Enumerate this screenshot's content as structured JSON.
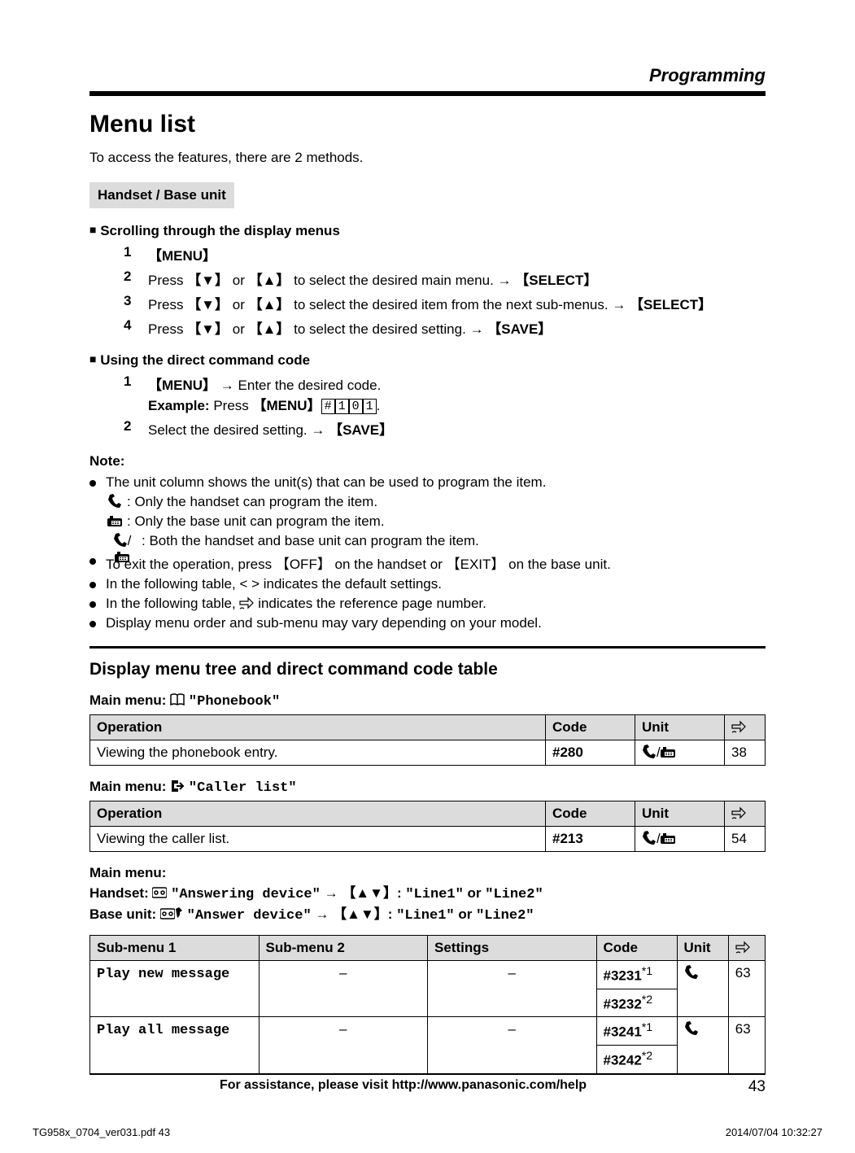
{
  "header": {
    "section": "Programming"
  },
  "title": "Menu list",
  "intro": "To access the features, there are 2 methods.",
  "shadeBox": "Handset / Base unit",
  "scrollHead": "Scrolling through the display menus",
  "scrollSteps": [
    {
      "n": "1",
      "html": "【MENU】"
    },
    {
      "n": "2",
      "html": "Press 【▼】 or 【▲】 to select the desired main menu. <span class='arrow'>→</span> 【SELECT】"
    },
    {
      "n": "3",
      "html": "Press 【▼】 or 【▲】 to select the desired item from the next sub-menus. <span class='arrow'>→</span> 【SELECT】"
    },
    {
      "n": "4",
      "html": "Press 【▼】 or 【▲】 to select the desired setting. <span class='arrow'>→</span> 【SAVE】"
    }
  ],
  "directHead": "Using the direct command code",
  "directSteps": [
    {
      "n": "1",
      "html": "【MENU】 <span class='arrow'>→</span> Enter the desired code.<br><b>Example:</b> Press 【MENU】<span class='key'>#</span><span class='key'>1</span><span class='key'>0</span><span class='key'>1</span>."
    },
    {
      "n": "2",
      "html": "Select the desired setting. <span class='arrow'>→</span> 【SAVE】"
    }
  ],
  "noteHead": "Note:",
  "notes": [
    "The unit column shows the unit(s) that can be used to program the item.",
    "To exit the operation, press 【OFF】 on the handset or 【EXIT】 on the base unit.",
    "In the following table, < > indicates the default settings.",
    "In the following table, ☞ indicates the reference page number.",
    "Display menu order and sub-menu may vary depending on your model."
  ],
  "subnotes": [
    ": Only the handset can program the item.",
    ": Only the base unit can program the item.",
    ": Both the handset and base unit can program the item."
  ],
  "sectionTitle": "Display menu tree and direct command code table",
  "menus": {
    "phonebook": {
      "label": "Main menu:",
      "name": "\"Phonebook\""
    },
    "caller": {
      "label": "Main menu:",
      "name": "\"Caller list\""
    },
    "ans": {
      "label": "Main menu:",
      "handset": "Handset: ",
      "base": "Base unit: ",
      "ansdev": "\"Answering device\"",
      "ansdev2": "\"Answer device\"",
      "linesel": "【▲▼】:",
      "line1": "\"Line1\"",
      "or": " or ",
      "line2": "\"Line2\""
    }
  },
  "tables": {
    "headers2": {
      "op": "Operation",
      "code": "Code",
      "unit": "Unit",
      "ref": "☞"
    },
    "headers5": {
      "s1": "Sub-menu 1",
      "s2": "Sub-menu 2",
      "set": "Settings",
      "code": "Code",
      "unit": "Unit",
      "ref": "☞"
    },
    "phonebook": {
      "op": "Viewing the phonebook entry.",
      "code": "#280",
      "ref": "38"
    },
    "caller": {
      "op": "Viewing the caller list.",
      "code": "#213",
      "ref": "54"
    },
    "ans": [
      {
        "s1": "Play new message",
        "code1": "#3231",
        "sup1": "*1",
        "code2": "#3232",
        "sup2": "*2",
        "ref": "63"
      },
      {
        "s1": "Play all message",
        "code1": "#3241",
        "sup1": "*1",
        "code2": "#3242",
        "sup2": "*2",
        "ref": "63"
      }
    ]
  },
  "footer": {
    "text": "For assistance, please visit http://www.panasonic.com/help",
    "page": "43"
  },
  "bottom": {
    "left": "TG958x_0704_ver031.pdf   43",
    "right": "2014/07/04   10:32:27"
  }
}
